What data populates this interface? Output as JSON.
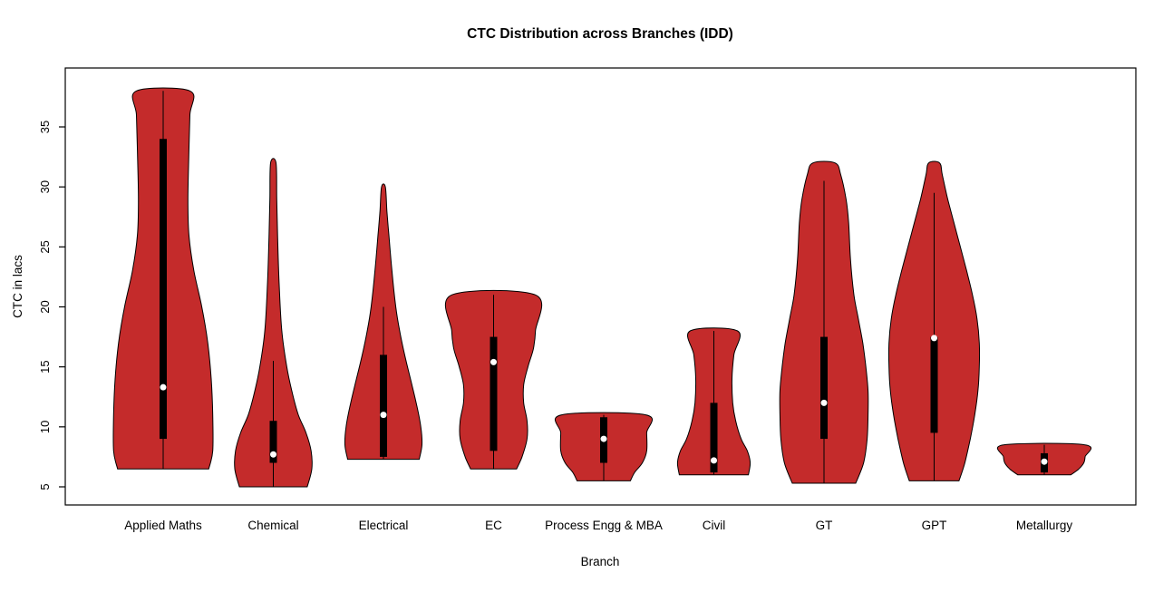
{
  "chart_data": {
    "type": "violin",
    "title": "CTC Distribution across Branches (IDD)",
    "xlabel": "Branch",
    "ylabel": "CTC in lacs",
    "y_ticks": [
      5,
      10,
      15,
      20,
      25,
      30,
      35
    ],
    "y_axis_range": [
      3.5,
      39.9
    ],
    "grid": false,
    "legend": "none",
    "violin_fill_color": "#C42B2B",
    "violin_outline_color": "#000000",
    "box_color": "#000000",
    "median_dot_color": "#ffffff",
    "categories": [
      "Applied Maths",
      "Chemical",
      "Electrical",
      "EC",
      "Process Engg & MBA",
      "Civil",
      "GT",
      "GPT",
      "Metallurgy"
    ],
    "violins": [
      {
        "branch": "Applied Maths",
        "max_half_width": 0.45,
        "profile": [
          [
            6.5,
            0.92
          ],
          [
            8,
            1.0
          ],
          [
            11,
            1.0
          ],
          [
            14,
            0.97
          ],
          [
            17,
            0.9
          ],
          [
            20,
            0.78
          ],
          [
            23,
            0.62
          ],
          [
            26,
            0.52
          ],
          [
            29,
            0.5
          ],
          [
            33,
            0.52
          ],
          [
            36,
            0.54
          ],
          [
            38,
            0.54
          ]
        ],
        "stats": {
          "min": 6.5,
          "max": 38,
          "q1": 9,
          "q3": 34,
          "median": 13.3,
          "whisker_low": 6.5,
          "whisker_high": 38
        }
      },
      {
        "branch": "Chemical",
        "max_half_width": 0.35,
        "profile": [
          [
            5,
            0.88
          ],
          [
            6.5,
            1.0
          ],
          [
            8,
            0.98
          ],
          [
            9.5,
            0.85
          ],
          [
            11,
            0.65
          ],
          [
            13,
            0.48
          ],
          [
            15,
            0.35
          ],
          [
            18,
            0.22
          ],
          [
            22,
            0.15
          ],
          [
            26,
            0.11
          ],
          [
            29,
            0.09
          ],
          [
            32,
            0.07
          ]
        ],
        "stats": {
          "min": 5,
          "max": 32,
          "q1": 7,
          "q3": 10.5,
          "median": 7.7,
          "whisker_low": 5,
          "whisker_high": 15.5
        }
      },
      {
        "branch": "Electrical",
        "max_half_width": 0.35,
        "profile": [
          [
            7.3,
            0.93
          ],
          [
            8.5,
            1.0
          ],
          [
            10,
            0.97
          ],
          [
            12,
            0.85
          ],
          [
            14,
            0.7
          ],
          [
            16,
            0.55
          ],
          [
            18,
            0.42
          ],
          [
            20,
            0.32
          ],
          [
            23,
            0.22
          ],
          [
            26,
            0.14
          ],
          [
            28,
            0.09
          ],
          [
            30,
            0.05
          ]
        ],
        "stats": {
          "min": 7.3,
          "max": 30,
          "q1": 7.5,
          "q3": 16,
          "median": 11,
          "whisker_low": 7.3,
          "whisker_high": 20
        }
      },
      {
        "branch": "EC",
        "max_half_width": 0.38,
        "profile": [
          [
            6.5,
            0.55
          ],
          [
            7.5,
            0.68
          ],
          [
            9,
            0.8
          ],
          [
            10.5,
            0.8
          ],
          [
            12,
            0.72
          ],
          [
            13.5,
            0.72
          ],
          [
            15,
            0.82
          ],
          [
            16.5,
            0.95
          ],
          [
            18,
            1.0
          ],
          [
            21,
            1.0
          ]
        ],
        "stats": {
          "min": 6.5,
          "max": 21,
          "q1": 8,
          "q3": 17.5,
          "median": 15.4,
          "whisker_low": 6.5,
          "whisker_high": 21
        }
      },
      {
        "branch": "Process Engg & MBA",
        "max_half_width": 0.39,
        "profile": [
          [
            5.5,
            0.62
          ],
          [
            6.2,
            0.72
          ],
          [
            7,
            0.9
          ],
          [
            8,
            1.0
          ],
          [
            9.5,
            1.0
          ],
          [
            11,
            0.98
          ]
        ],
        "stats": {
          "min": 5.5,
          "max": 11,
          "q1": 7,
          "q3": 10.8,
          "median": 9,
          "whisker_low": 5.5,
          "whisker_high": 11
        }
      },
      {
        "branch": "Civil",
        "max_half_width": 0.33,
        "profile": [
          [
            6,
            0.95
          ],
          [
            7,
            1.0
          ],
          [
            8,
            0.92
          ],
          [
            9,
            0.75
          ],
          [
            10.5,
            0.6
          ],
          [
            12,
            0.52
          ],
          [
            14,
            0.5
          ],
          [
            16,
            0.55
          ],
          [
            18,
            0.65
          ]
        ],
        "stats": {
          "min": 6,
          "max": 18,
          "q1": 6.2,
          "q3": 12,
          "median": 7.2,
          "whisker_low": 6,
          "whisker_high": 18
        }
      },
      {
        "branch": "GT",
        "max_half_width": 0.4,
        "profile": [
          [
            5.3,
            0.72
          ],
          [
            7,
            0.9
          ],
          [
            9,
            0.98
          ],
          [
            11,
            1.0
          ],
          [
            13,
            1.0
          ],
          [
            15,
            0.95
          ],
          [
            17,
            0.88
          ],
          [
            19,
            0.78
          ],
          [
            21,
            0.68
          ],
          [
            24,
            0.6
          ],
          [
            27,
            0.56
          ],
          [
            29,
            0.5
          ],
          [
            31,
            0.38
          ],
          [
            32,
            0.25
          ]
        ],
        "stats": {
          "min": 5.3,
          "max": 32,
          "q1": 9,
          "q3": 17.5,
          "median": 12,
          "whisker_low": 5.3,
          "whisker_high": 30.5
        }
      },
      {
        "branch": "GPT",
        "max_half_width": 0.41,
        "profile": [
          [
            5.5,
            0.55
          ],
          [
            7,
            0.68
          ],
          [
            9,
            0.8
          ],
          [
            11,
            0.9
          ],
          [
            13,
            0.97
          ],
          [
            15,
            1.0
          ],
          [
            17,
            1.0
          ],
          [
            19,
            0.95
          ],
          [
            21,
            0.85
          ],
          [
            23,
            0.72
          ],
          [
            25,
            0.58
          ],
          [
            27,
            0.44
          ],
          [
            29,
            0.3
          ],
          [
            31,
            0.18
          ],
          [
            32,
            0.12
          ]
        ],
        "stats": {
          "min": 5.5,
          "max": 32,
          "q1": 9.5,
          "q3": 17.5,
          "median": 17.4,
          "whisker_low": 5.5,
          "whisker_high": 29.5
        }
      },
      {
        "branch": "Metallurgy",
        "max_half_width": 0.37,
        "profile": [
          [
            6,
            0.65
          ],
          [
            6.5,
            0.85
          ],
          [
            7,
            0.97
          ],
          [
            7.5,
            1.0
          ],
          [
            8.5,
            1.0
          ]
        ],
        "stats": {
          "min": 6,
          "max": 8.5,
          "q1": 6.2,
          "q3": 7.8,
          "median": 7.1,
          "whisker_low": 6,
          "whisker_high": 8.5
        }
      }
    ]
  }
}
